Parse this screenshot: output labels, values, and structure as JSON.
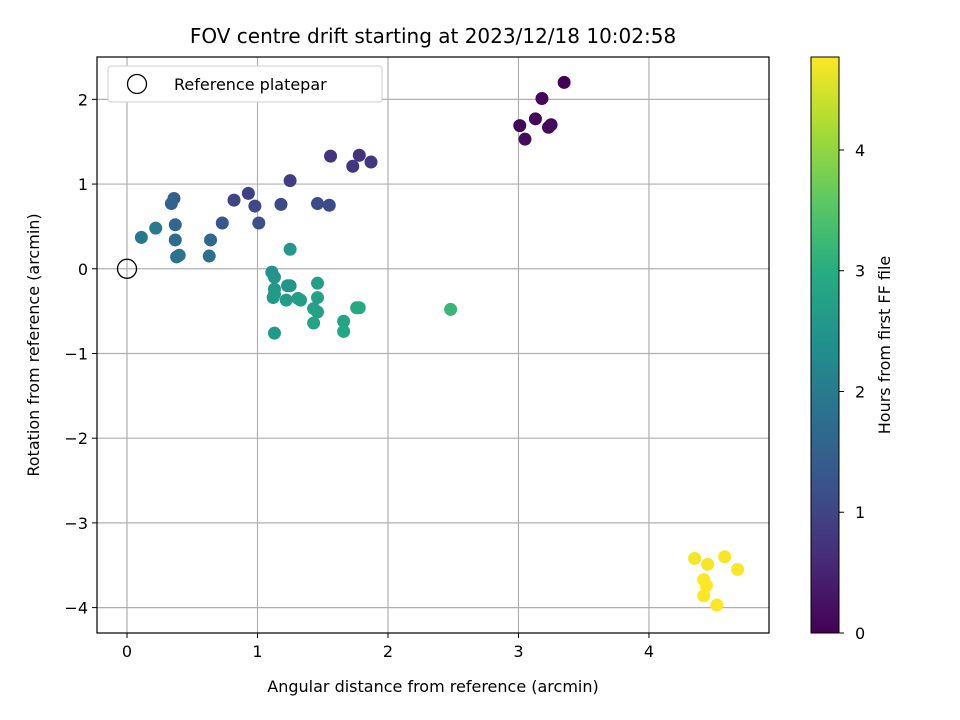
{
  "chart_data": {
    "type": "scatter",
    "title": "FOV centre drift starting at 2023/12/18 10:02:58",
    "xlabel": "Angular distance from reference (arcmin)",
    "ylabel": "Rotation from reference (arcmin)",
    "xlim": [
      -0.23,
      4.92
    ],
    "ylim": [
      -4.3,
      2.5
    ],
    "xticks": [
      0,
      1,
      2,
      3,
      4
    ],
    "yticks": [
      -4,
      -3,
      -2,
      -1,
      0,
      1,
      2
    ],
    "grid": true,
    "legend": {
      "placement": "top-left",
      "entries": [
        {
          "label": "Reference platepar",
          "marker": "open-circle"
        }
      ]
    },
    "reference_point": {
      "x": 0,
      "y": 0
    },
    "colorbar": {
      "label": "Hours from first FF file",
      "colormap": "viridis",
      "range": [
        0,
        4.77
      ],
      "ticks": [
        0,
        1,
        2,
        3,
        4
      ]
    },
    "points": [
      {
        "x": 3.35,
        "y": 2.2,
        "c": 0.02
      },
      {
        "x": 3.18,
        "y": 2.01,
        "c": 0.05
      },
      {
        "x": 3.13,
        "y": 1.77,
        "c": 0.08
      },
      {
        "x": 3.01,
        "y": 1.69,
        "c": 0.1
      },
      {
        "x": 3.25,
        "y": 1.7,
        "c": 0.12
      },
      {
        "x": 3.23,
        "y": 1.67,
        "c": 0.14
      },
      {
        "x": 3.05,
        "y": 1.53,
        "c": 0.16
      },
      {
        "x": 1.78,
        "y": 1.34,
        "c": 0.72
      },
      {
        "x": 1.56,
        "y": 1.33,
        "c": 0.75
      },
      {
        "x": 1.87,
        "y": 1.26,
        "c": 0.78
      },
      {
        "x": 1.73,
        "y": 1.21,
        "c": 0.8
      },
      {
        "x": 1.25,
        "y": 1.04,
        "c": 0.88
      },
      {
        "x": 0.93,
        "y": 0.89,
        "c": 0.95
      },
      {
        "x": 0.82,
        "y": 0.81,
        "c": 1.02
      },
      {
        "x": 0.98,
        "y": 0.74,
        "c": 1.05
      },
      {
        "x": 1.18,
        "y": 0.76,
        "c": 1.08
      },
      {
        "x": 1.46,
        "y": 0.77,
        "c": 1.1
      },
      {
        "x": 1.55,
        "y": 0.75,
        "c": 1.12
      },
      {
        "x": 1.01,
        "y": 0.54,
        "c": 1.2
      },
      {
        "x": 0.73,
        "y": 0.54,
        "c": 1.3
      },
      {
        "x": 0.36,
        "y": 0.83,
        "c": 1.5
      },
      {
        "x": 0.34,
        "y": 0.77,
        "c": 1.55
      },
      {
        "x": 0.37,
        "y": 0.52,
        "c": 1.6
      },
      {
        "x": 0.64,
        "y": 0.34,
        "c": 1.65
      },
      {
        "x": 0.37,
        "y": 0.34,
        "c": 1.7
      },
      {
        "x": 0.63,
        "y": 0.15,
        "c": 1.75
      },
      {
        "x": 0.38,
        "y": 0.14,
        "c": 1.8
      },
      {
        "x": 0.4,
        "y": 0.16,
        "c": 1.85
      },
      {
        "x": 0.11,
        "y": 0.37,
        "c": 1.9
      },
      {
        "x": 0.22,
        "y": 0.48,
        "c": 2.0
      },
      {
        "x": 1.25,
        "y": 0.23,
        "c": 2.55
      },
      {
        "x": 1.11,
        "y": -0.04,
        "c": 2.45
      },
      {
        "x": 1.13,
        "y": -0.1,
        "c": 2.48
      },
      {
        "x": 1.23,
        "y": -0.2,
        "c": 2.5
      },
      {
        "x": 1.25,
        "y": -0.2,
        "c": 2.52
      },
      {
        "x": 1.13,
        "y": -0.24,
        "c": 2.55
      },
      {
        "x": 1.13,
        "y": -0.3,
        "c": 2.57
      },
      {
        "x": 1.12,
        "y": -0.34,
        "c": 2.6
      },
      {
        "x": 1.22,
        "y": -0.37,
        "c": 2.62
      },
      {
        "x": 1.31,
        "y": -0.35,
        "c": 2.65
      },
      {
        "x": 1.33,
        "y": -0.37,
        "c": 2.67
      },
      {
        "x": 1.46,
        "y": -0.17,
        "c": 2.7
      },
      {
        "x": 1.46,
        "y": -0.34,
        "c": 2.72
      },
      {
        "x": 1.43,
        "y": -0.47,
        "c": 2.75
      },
      {
        "x": 1.46,
        "y": -0.51,
        "c": 2.78
      },
      {
        "x": 1.43,
        "y": -0.64,
        "c": 2.8
      },
      {
        "x": 1.66,
        "y": -0.62,
        "c": 2.82
      },
      {
        "x": 1.66,
        "y": -0.74,
        "c": 2.85
      },
      {
        "x": 1.13,
        "y": -0.76,
        "c": 2.6
      },
      {
        "x": 1.76,
        "y": -0.46,
        "c": 2.88
      },
      {
        "x": 1.78,
        "y": -0.46,
        "c": 2.9
      },
      {
        "x": 2.48,
        "y": -0.48,
        "c": 3.2
      },
      {
        "x": 4.35,
        "y": -3.42,
        "c": 4.7
      },
      {
        "x": 4.45,
        "y": -3.49,
        "c": 4.72
      },
      {
        "x": 4.58,
        "y": -3.4,
        "c": 4.73
      },
      {
        "x": 4.68,
        "y": -3.55,
        "c": 4.74
      },
      {
        "x": 4.42,
        "y": -3.67,
        "c": 4.75
      },
      {
        "x": 4.44,
        "y": -3.74,
        "c": 4.76
      },
      {
        "x": 4.42,
        "y": -3.86,
        "c": 4.76
      },
      {
        "x": 4.52,
        "y": -3.97,
        "c": 4.77
      }
    ]
  }
}
